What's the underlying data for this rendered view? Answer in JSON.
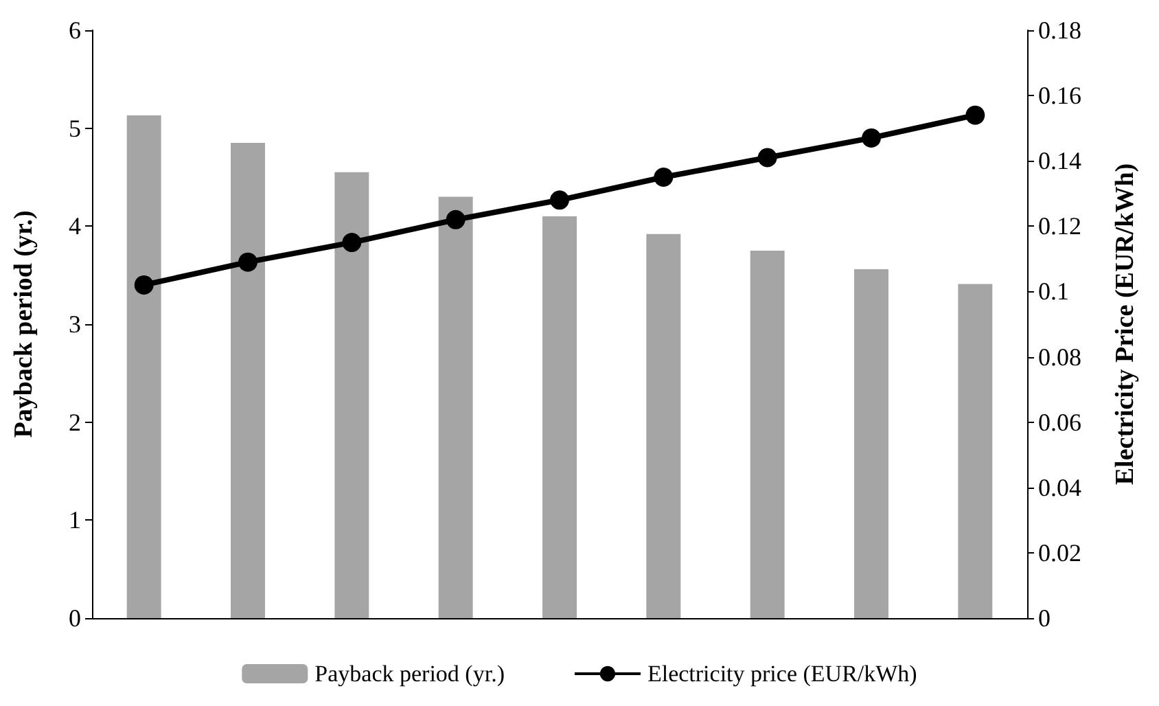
{
  "chart_data": {
    "type": "bar",
    "ylabel": "Payback period (yr.)",
    "y2label": "Electricity Price (EUR/kWh)",
    "categories": [
      null,
      null,
      null,
      null,
      null,
      null,
      null,
      null,
      null
    ],
    "series": [
      {
        "name": "Payback period (yr.)",
        "color": "#a5a5a5",
        "values": [
          5.13,
          4.85,
          4.55,
          4.3,
          4.1,
          3.92,
          3.75,
          3.56,
          3.41
        ]
      },
      {
        "name": "Electricity price (EUR/kWh)",
        "type": "line",
        "axis": "y2",
        "color": "#000000",
        "marker": "circle",
        "values": [
          0.102,
          0.109,
          0.115,
          0.122,
          0.128,
          0.135,
          0.141,
          0.147,
          0.154
        ]
      }
    ],
    "ylim": [
      0,
      6
    ],
    "yticks": [
      0,
      1,
      2,
      3,
      4,
      5,
      6
    ],
    "y2lim": [
      0,
      0.18
    ],
    "y2ticks": [
      0,
      0.02,
      0.04,
      0.06,
      0.08,
      0.1,
      0.12,
      0.14,
      0.16,
      0.18
    ],
    "legend": "bottom",
    "grid": false
  }
}
